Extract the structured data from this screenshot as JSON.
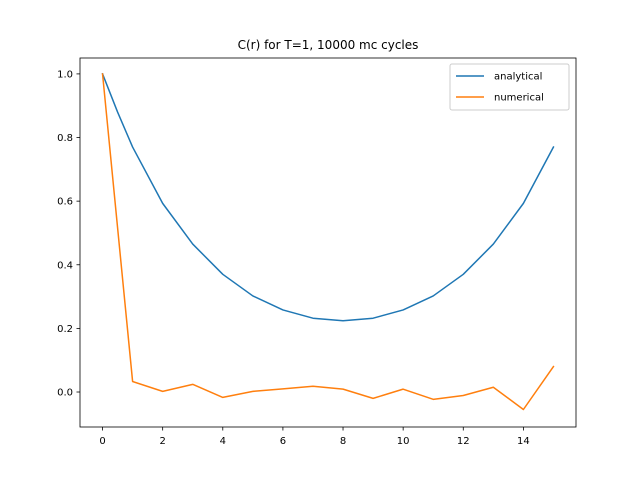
{
  "chart_data": {
    "type": "line",
    "title": "C(r) for T=1, 10000 mc cycles",
    "xlabel": "",
    "ylabel": "",
    "xlim": [
      -0.75,
      15.75
    ],
    "ylim": [
      -0.11,
      1.05
    ],
    "x_ticks": [
      0,
      2,
      4,
      6,
      8,
      10,
      12,
      14
    ],
    "y_ticks": [
      0.0,
      0.2,
      0.4,
      0.6,
      0.8,
      1.0
    ],
    "x_tick_labels": [
      "0",
      "2",
      "4",
      "6",
      "8",
      "10",
      "12",
      "14"
    ],
    "y_tick_labels": [
      "0.0",
      "0.2",
      "0.4",
      "0.6",
      "0.8",
      "1.0"
    ],
    "grid": false,
    "legend_position": "top-right",
    "series": [
      {
        "name": "analytical",
        "color": "#1f77b4",
        "x": [
          0,
          0.5,
          1,
          2,
          3,
          4,
          5,
          6,
          7,
          8,
          9,
          10,
          11,
          12,
          13,
          14,
          15
        ],
        "y": [
          1.0,
          0.88,
          0.77,
          0.593,
          0.465,
          0.37,
          0.302,
          0.258,
          0.232,
          0.224,
          0.232,
          0.258,
          0.302,
          0.37,
          0.465,
          0.593,
          0.77
        ]
      },
      {
        "name": "numerical",
        "color": "#ff7f0e",
        "x": [
          0,
          1,
          2,
          3,
          4,
          5,
          6,
          7,
          8,
          9,
          10,
          11,
          12,
          13,
          14,
          15
        ],
        "y": [
          1.0,
          0.033,
          0.002,
          0.024,
          -0.017,
          0.002,
          0.01,
          0.018,
          0.009,
          -0.02,
          0.009,
          -0.023,
          -0.011,
          0.015,
          -0.055,
          0.08
        ]
      }
    ]
  }
}
